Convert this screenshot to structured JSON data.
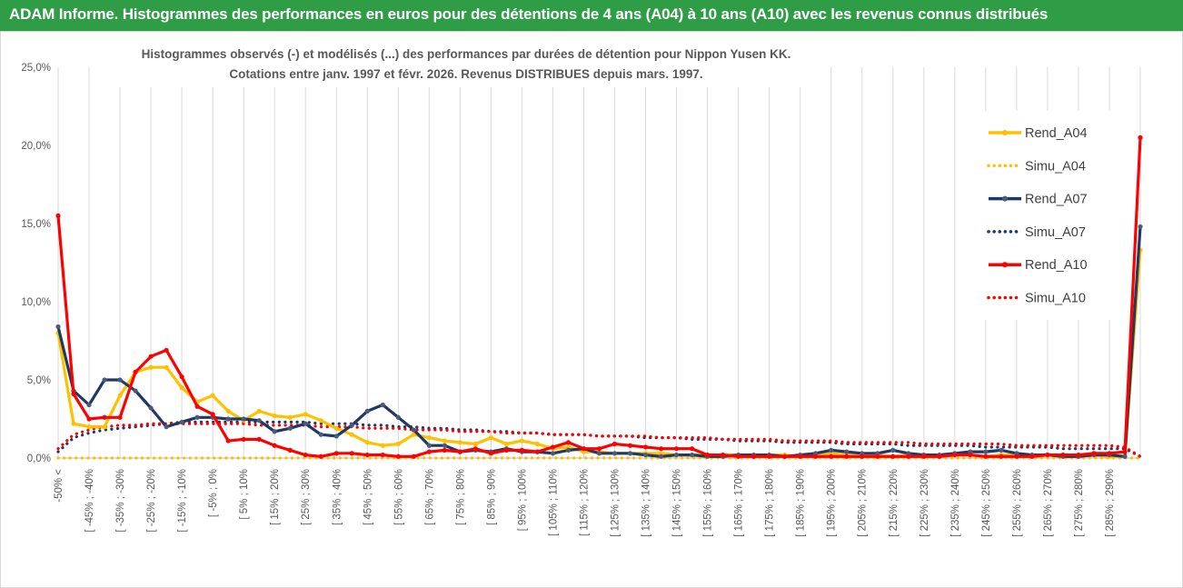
{
  "banner": {
    "text": "ADAM Informe. Histogrammes des performances en euros pour des détentions de 4 ans (A04) à 10 ans (A10) avec les revenus connus distribués",
    "background": "#2f9d45",
    "color": "#ffffff"
  },
  "chart_data": {
    "type": "line",
    "title": [
      "Histogrammes observés (-) et modélisés (...) des performances par durées de détention pour Nippon Yusen KK.",
      "Cotations entre janv. 1997 et févr. 2026. Revenus DISTRIBUES depuis mars. 1997."
    ],
    "xlabel": "",
    "ylabel": "",
    "ylim": [
      0,
      25
    ],
    "y_ticks": [
      0,
      5,
      10,
      15,
      20,
      25
    ],
    "y_tick_labels": [
      "0,0%",
      "5,0%",
      "10,0%",
      "15,0%",
      "20,0%",
      "25,0%"
    ],
    "grid": "vertical",
    "legend": "right",
    "x_tick_labels": [
      "-50% <",
      "[ -45% ; -40%",
      "[ -35% ; -30%",
      "[ -25% ; -20%",
      "[ -15% ; -10%",
      "[ -5% ; 0%",
      "[ 5% ; 10%",
      "[ 15% ; 20%",
      "[ 25% ; 30%",
      "[ 35% ; 40%",
      "[ 45% ; 50%",
      "[ 55% ; 60%",
      "[ 65% ; 70%",
      "[ 75% ; 80%",
      "[ 85% ; 90%",
      "[ 95% ; 100%",
      "[ 105% ; 110%",
      "[ 115% ; 120%",
      "[ 125% ; 130%",
      "[ 135% ; 140%",
      "[ 145% ; 150%",
      "[ 155% ; 160%",
      "[ 165% ; 170%",
      "[ 175% ; 180%",
      "[ 185% ; 190%",
      "[ 195% ; 200%",
      "[ 205% ; 210%",
      "[ 215% ; 220%",
      "[ 225% ; 230%",
      "[ 235% ; 240%",
      "[ 245% ; 250%",
      "[ 255% ; 260%",
      "[ 265% ; 270%",
      "[ 275% ; 280%",
      "[ 285% ; 290%"
    ],
    "series": [
      {
        "name": "Rend_A04",
        "style": "solid",
        "color": "#ffc000",
        "values": [
          8.0,
          2.2,
          2.0,
          2.0,
          4.0,
          5.5,
          5.8,
          5.8,
          4.5,
          3.6,
          4.0,
          3.0,
          2.4,
          3.0,
          2.7,
          2.6,
          2.8,
          2.4,
          1.9,
          1.5,
          1.0,
          0.8,
          0.9,
          1.5,
          1.3,
          1.1,
          1.0,
          0.9,
          1.3,
          0.9,
          1.1,
          0.9,
          0.6,
          0.7,
          0.4,
          0.4,
          0.3,
          0.3,
          0.3,
          0.3,
          0.2,
          0.2,
          0.2,
          0.2,
          0.2,
          0.2,
          0.2,
          0.2,
          0.1,
          0.2,
          0.3,
          0.2,
          0.2,
          0.2,
          0.1,
          0.2,
          0.2,
          0.1,
          0.2,
          0.2,
          0.1,
          0.2,
          0.2,
          0.1,
          0.2,
          0.2,
          0.1,
          0.2,
          0.1,
          0.1,
          13.3
        ]
      },
      {
        "name": "Simu_A04",
        "style": "dotted",
        "color": "#ffc000",
        "values": [
          0.0,
          0.0,
          0.0,
          0.0,
          0.0,
          0.0,
          0.0,
          0.0,
          0.0,
          0.0,
          0.0,
          0.0,
          0.0,
          0.0,
          0.0,
          0.0,
          0.0,
          0.0,
          0.0,
          0.0,
          0.0,
          0.0,
          0.0,
          0.0,
          0.0,
          0.0,
          0.0,
          0.0,
          0.0,
          0.0,
          0.0,
          0.0,
          0.0,
          0.0,
          0.0,
          0.0,
          0.0,
          0.0,
          0.0,
          0.0,
          0.0,
          0.0,
          0.0,
          0.0,
          0.0,
          0.0,
          0.0,
          0.0,
          0.0,
          0.0,
          0.0,
          0.0,
          0.0,
          0.0,
          0.0,
          0.0,
          0.0,
          0.0,
          0.0,
          0.0,
          0.0,
          0.0,
          0.0,
          0.0,
          0.0,
          0.0,
          0.0,
          0.0,
          0.0,
          0.0,
          0.0
        ]
      },
      {
        "name": "Rend_A07",
        "style": "solid",
        "color": "#1f3864",
        "values": [
          8.4,
          4.3,
          3.4,
          5.0,
          5.0,
          4.3,
          3.2,
          2.0,
          2.3,
          2.6,
          2.6,
          2.5,
          2.5,
          2.4,
          1.7,
          1.9,
          2.2,
          1.5,
          1.4,
          2.1,
          3.0,
          3.4,
          2.6,
          1.8,
          0.8,
          0.8,
          0.4,
          0.5,
          0.4,
          0.6,
          0.4,
          0.4,
          0.3,
          0.5,
          0.6,
          0.3,
          0.3,
          0.3,
          0.2,
          0.1,
          0.2,
          0.2,
          0.1,
          0.1,
          0.2,
          0.2,
          0.2,
          0.1,
          0.2,
          0.3,
          0.5,
          0.4,
          0.3,
          0.3,
          0.5,
          0.3,
          0.2,
          0.2,
          0.3,
          0.4,
          0.4,
          0.5,
          0.3,
          0.2,
          0.2,
          0.1,
          0.1,
          0.2,
          0.2,
          0.1,
          14.8
        ]
      },
      {
        "name": "Simu_A07",
        "style": "dotted",
        "color": "#1f3864",
        "values": [
          0.4,
          1.3,
          1.6,
          1.8,
          1.9,
          2.0,
          2.1,
          2.2,
          2.3,
          2.3,
          2.3,
          2.3,
          2.3,
          2.3,
          2.3,
          2.3,
          2.3,
          2.2,
          2.2,
          2.2,
          2.1,
          2.1,
          2.0,
          2.0,
          1.9,
          1.9,
          1.8,
          1.8,
          1.7,
          1.7,
          1.6,
          1.6,
          1.5,
          1.5,
          1.5,
          1.4,
          1.4,
          1.4,
          1.3,
          1.3,
          1.3,
          1.2,
          1.2,
          1.2,
          1.1,
          1.1,
          1.1,
          1.0,
          1.0,
          1.0,
          1.0,
          0.9,
          0.9,
          0.9,
          0.9,
          0.8,
          0.8,
          0.8,
          0.8,
          0.8,
          0.7,
          0.7,
          0.7,
          0.7,
          0.7,
          0.6,
          0.6,
          0.6,
          0.6,
          0.6,
          0.1
        ]
      },
      {
        "name": "Rend_A10",
        "style": "solid",
        "color": "#ff0000",
        "values": [
          15.5,
          4.1,
          2.5,
          2.6,
          2.6,
          5.5,
          6.5,
          6.9,
          5.2,
          3.3,
          2.8,
          1.1,
          1.2,
          1.2,
          0.8,
          0.5,
          0.2,
          0.1,
          0.3,
          0.3,
          0.2,
          0.2,
          0.1,
          0.1,
          0.4,
          0.5,
          0.4,
          0.6,
          0.3,
          0.5,
          0.5,
          0.4,
          0.7,
          1.0,
          0.6,
          0.6,
          0.9,
          0.8,
          0.7,
          0.6,
          0.6,
          0.6,
          0.2,
          0.2,
          0.1,
          0.1,
          0.1,
          0.1,
          0.1,
          0.1,
          0.1,
          0.1,
          0.1,
          0.1,
          0.1,
          0.1,
          0.1,
          0.1,
          0.2,
          0.2,
          0.1,
          0.1,
          0.1,
          0.1,
          0.2,
          0.2,
          0.2,
          0.3,
          0.3,
          0.4,
          20.5
        ]
      },
      {
        "name": "Simu_A10",
        "style": "dotted",
        "color": "#ff0000",
        "values": [
          0.6,
          1.5,
          1.8,
          2.0,
          2.1,
          2.1,
          2.2,
          2.2,
          2.2,
          2.2,
          2.2,
          2.2,
          2.2,
          2.1,
          2.1,
          2.1,
          2.1,
          2.0,
          2.0,
          2.0,
          1.9,
          1.9,
          1.9,
          1.8,
          1.8,
          1.8,
          1.7,
          1.7,
          1.7,
          1.6,
          1.6,
          1.6,
          1.5,
          1.5,
          1.5,
          1.4,
          1.4,
          1.4,
          1.4,
          1.3,
          1.3,
          1.3,
          1.3,
          1.2,
          1.2,
          1.2,
          1.2,
          1.1,
          1.1,
          1.1,
          1.1,
          1.0,
          1.0,
          1.0,
          1.0,
          1.0,
          0.9,
          0.9,
          0.9,
          0.9,
          0.9,
          0.9,
          0.8,
          0.8,
          0.8,
          0.8,
          0.8,
          0.8,
          0.8,
          0.7,
          0.1
        ]
      }
    ]
  }
}
